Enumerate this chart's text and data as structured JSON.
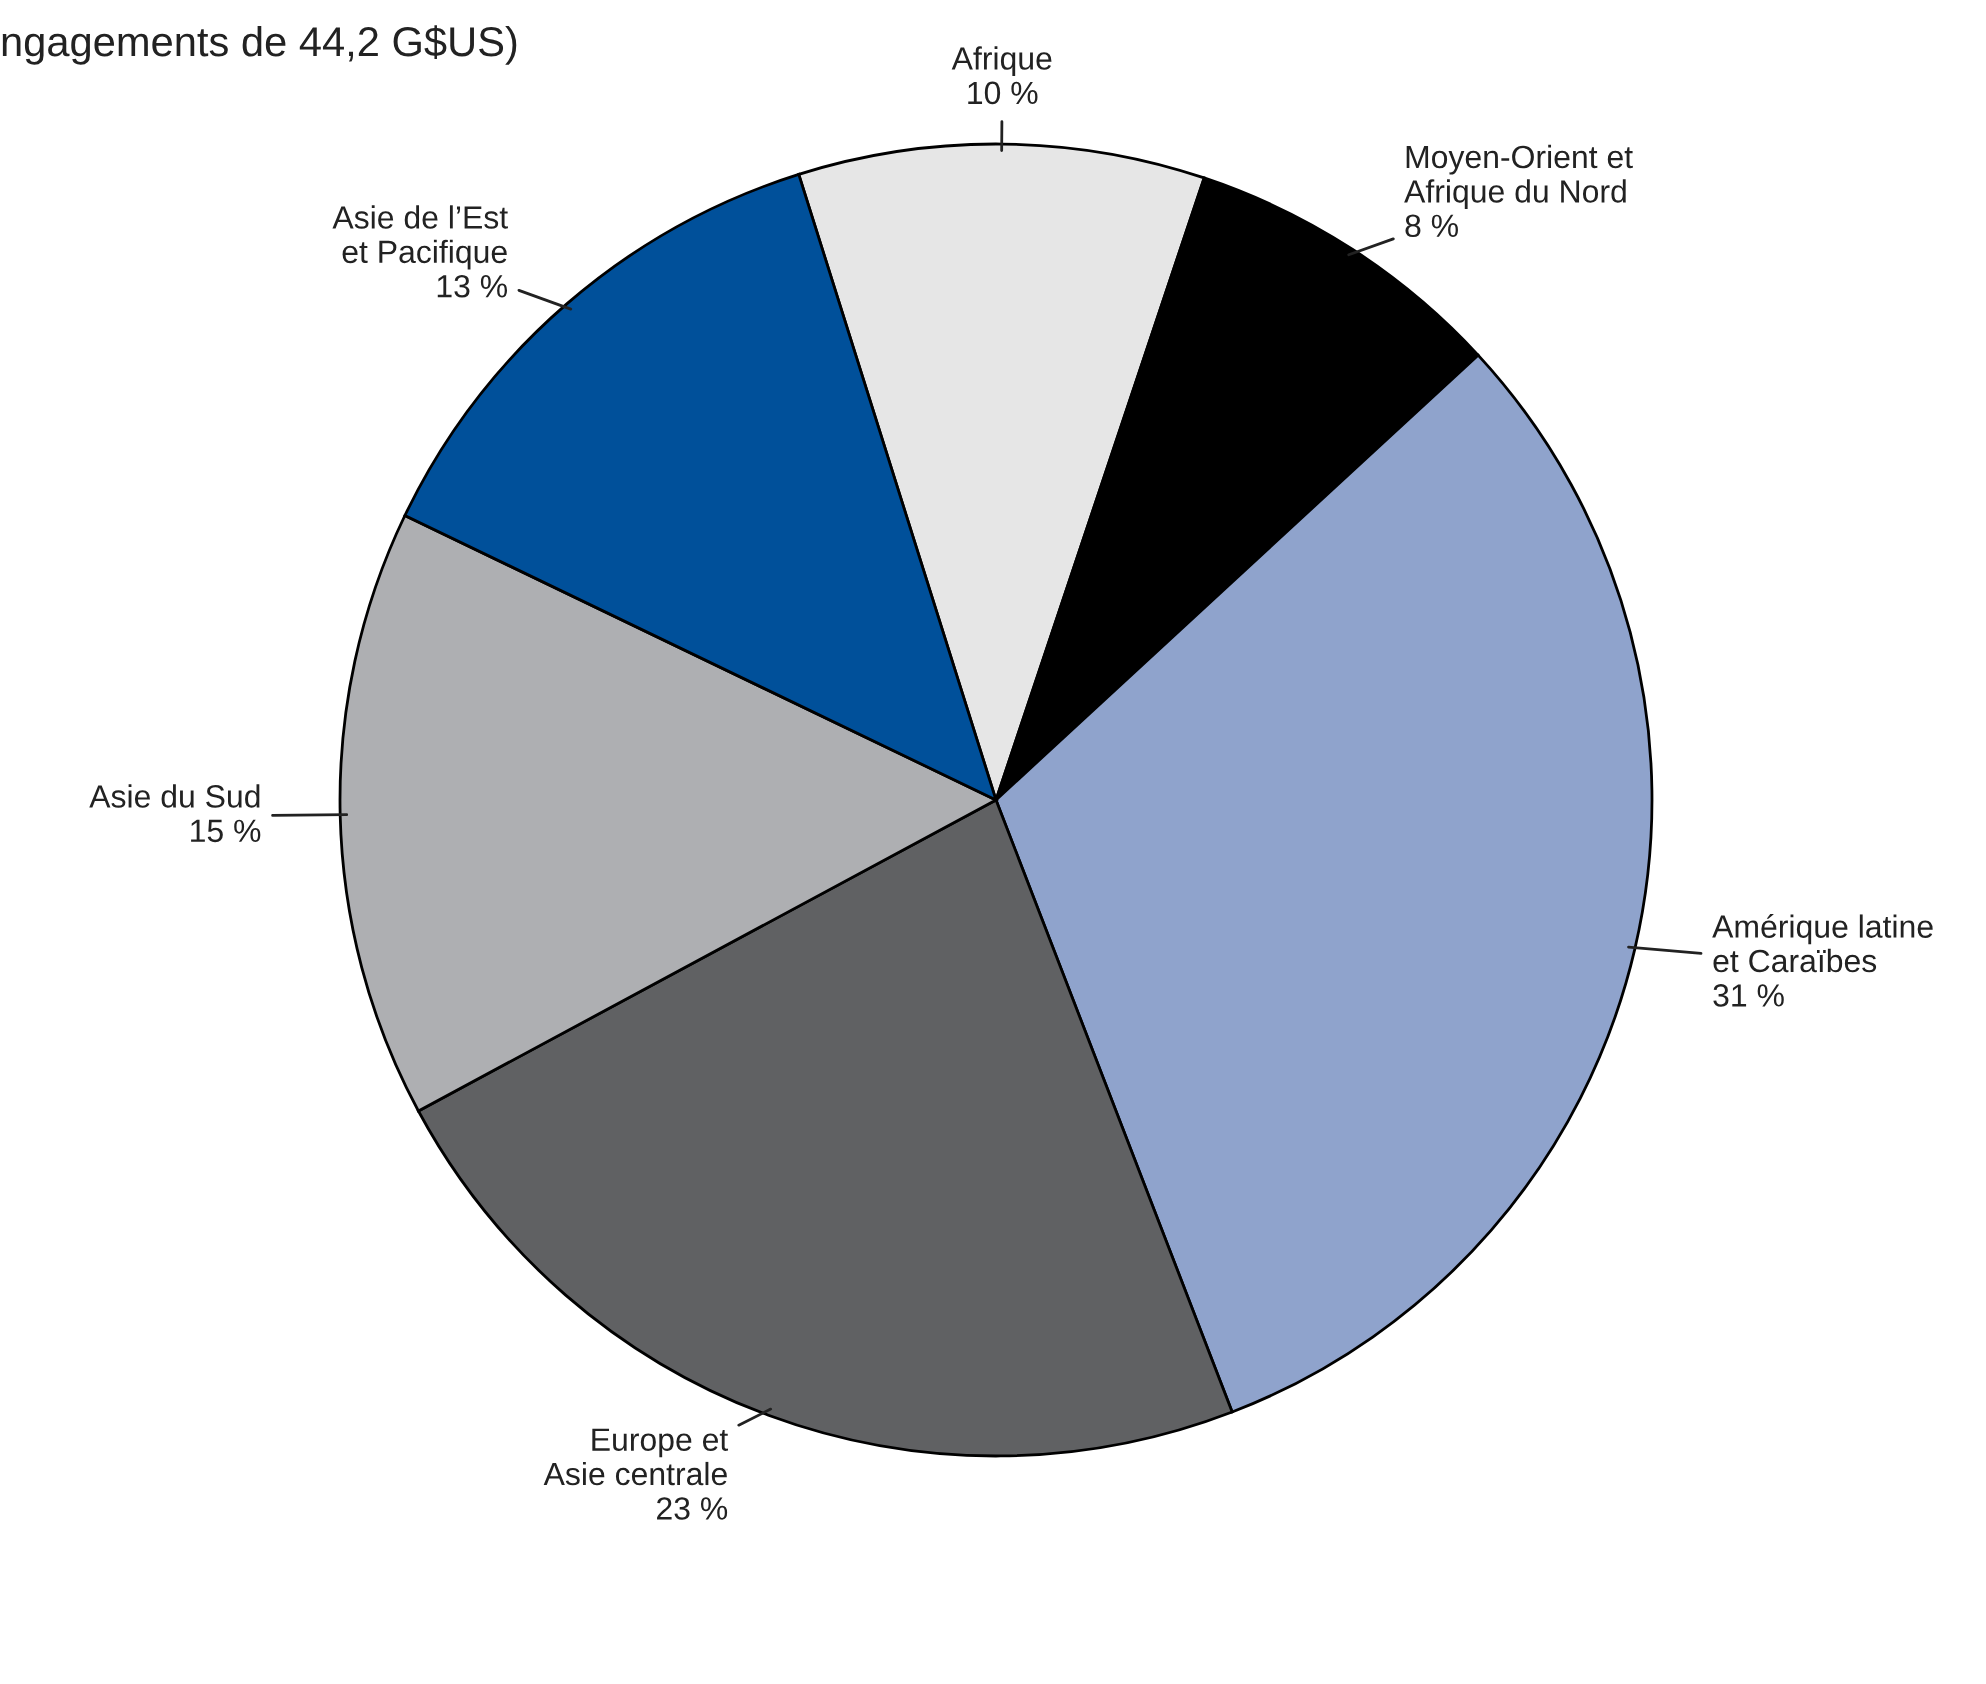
{
  "chart_data": {
    "type": "pie",
    "title": "ngagements de 44,2 G$US)",
    "categories": [
      "Afrique",
      "Moyen-Orient et\nAfrique du Nord",
      "Amérique latine\net Caraïbes",
      "Europe et\nAsie centrale",
      "Asie du Sud",
      "Asie de l’Est\net Pacifique"
    ],
    "values": [
      10,
      8,
      31,
      23,
      15,
      13
    ],
    "value_labels": [
      "10 %",
      "8 %",
      "31 %",
      "23 %",
      "15 %",
      "13 %"
    ],
    "colors": [
      "#e6e6e6",
      "#000000",
      "#8fa3cc",
      "#606163",
      "#aeafb2",
      "#00509a"
    ]
  }
}
